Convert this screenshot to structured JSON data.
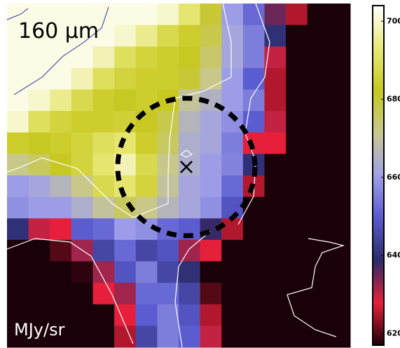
{
  "chart_data": {
    "type": "heatmap",
    "title": "160 μm",
    "units_label": "MJy/sr",
    "z": [
      [
        702,
        702,
        702,
        702,
        702,
        702,
        702,
        700,
        692,
        680,
        660,
        652,
        635,
        625,
        610,
        610
      ],
      [
        702,
        702,
        702,
        702,
        702,
        700,
        695,
        688,
        684,
        678,
        662,
        655,
        640,
        615,
        610,
        610
      ],
      [
        702,
        702,
        702,
        702,
        698,
        690,
        686,
        684,
        682,
        675,
        662,
        655,
        630,
        612,
        610,
        610
      ],
      [
        702,
        702,
        702,
        698,
        690,
        686,
        684,
        684,
        680,
        672,
        660,
        650,
        625,
        610,
        610,
        610
      ],
      [
        702,
        700,
        695,
        688,
        684,
        682,
        684,
        682,
        670,
        665,
        660,
        655,
        625,
        610,
        610,
        610
      ],
      [
        700,
        690,
        686,
        684,
        684,
        685,
        682,
        678,
        666,
        662,
        658,
        650,
        630,
        610,
        610,
        610
      ],
      [
        684,
        682,
        684,
        686,
        690,
        692,
        684,
        676,
        664,
        662,
        655,
        628,
        628,
        610,
        610,
        610
      ],
      [
        672,
        676,
        682,
        686,
        692,
        698,
        688,
        672,
        664,
        660,
        656,
        640,
        615,
        610,
        610,
        610
      ],
      [
        660,
        662,
        666,
        672,
        688,
        692,
        686,
        670,
        662,
        660,
        652,
        625,
        610,
        610,
        610,
        610
      ],
      [
        658,
        660,
        660,
        664,
        670,
        676,
        672,
        666,
        662,
        658,
        648,
        615,
        610,
        610,
        610,
        610
      ],
      [
        640,
        630,
        628,
        650,
        652,
        660,
        658,
        652,
        650,
        638,
        625,
        610,
        610,
        610,
        610,
        610
      ],
      [
        612,
        612,
        620,
        632,
        645,
        652,
        645,
        648,
        632,
        628,
        612,
        610,
        610,
        610,
        610,
        610
      ],
      [
        610,
        610,
        612,
        618,
        632,
        648,
        655,
        645,
        640,
        612,
        610,
        610,
        610,
        610,
        610,
        610
      ],
      [
        610,
        610,
        610,
        612,
        628,
        632,
        652,
        652,
        645,
        620,
        610,
        610,
        610,
        610,
        610,
        610
      ],
      [
        610,
        610,
        610,
        610,
        612,
        628,
        650,
        655,
        648,
        625,
        610,
        610,
        610,
        610,
        610,
        610
      ],
      [
        610,
        610,
        610,
        610,
        610,
        625,
        645,
        655,
        650,
        630,
        610,
        610,
        610,
        610,
        610,
        610
      ]
    ],
    "zlim": [
      617,
      704
    ],
    "zticks": [
      620,
      640,
      660,
      680,
      700
    ],
    "colorscale": [
      "#1a0008",
      "#e8203a",
      "#2a2a6a",
      "#5a5ad0",
      "#a0a0e8",
      "#c8c890",
      "#c8c820",
      "#e8e878",
      "#ffffff"
    ]
  }
}
